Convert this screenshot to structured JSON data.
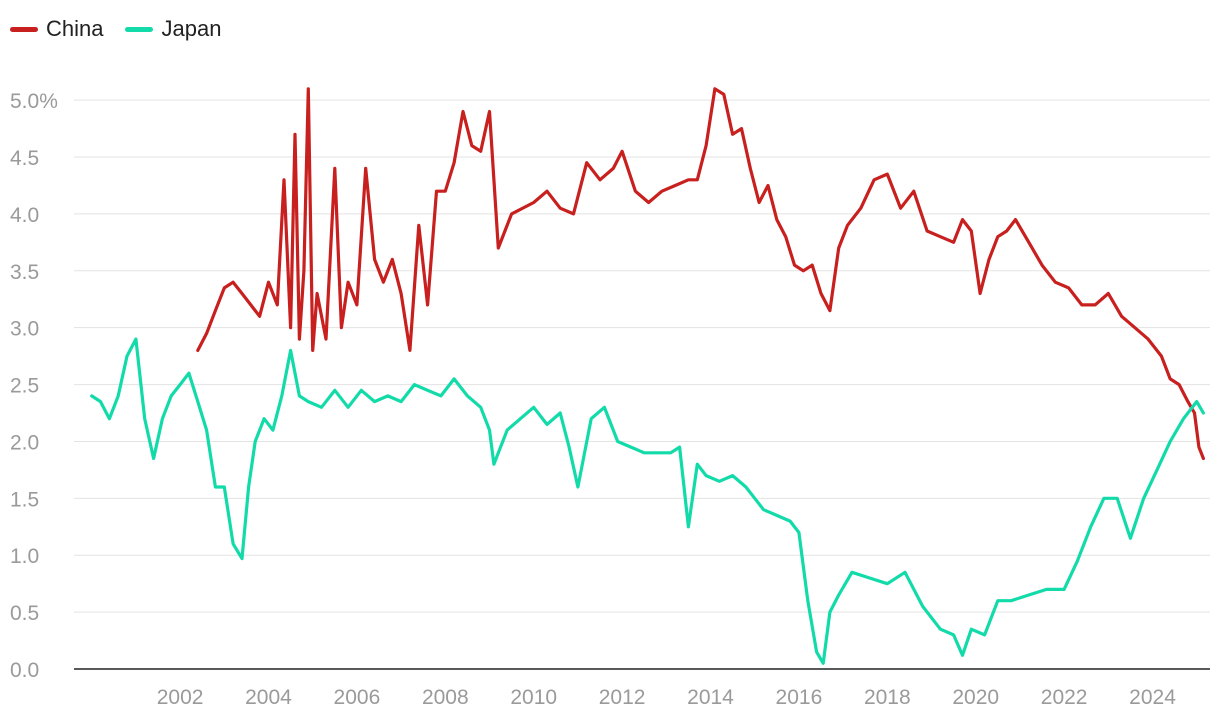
{
  "chart_data": {
    "type": "line",
    "title": "",
    "xlabel": "",
    "ylabel": "",
    "ylim": [
      0,
      5.3
    ],
    "xlim": [
      1999.6,
      2025.3
    ],
    "yticks": [
      0.0,
      0.5,
      1.0,
      1.5,
      2.0,
      2.5,
      3.0,
      3.5,
      4.0,
      4.5,
      5.0
    ],
    "ytick_labels": [
      "0.0",
      "0.5",
      "1.0",
      "1.5",
      "2.0",
      "2.5",
      "3.0",
      "3.5",
      "4.0",
      "4.5",
      "5.0%"
    ],
    "xticks": [
      2002,
      2004,
      2006,
      2008,
      2010,
      2012,
      2014,
      2016,
      2018,
      2020,
      2022,
      2024
    ],
    "xtick_labels": [
      "2002",
      "2004",
      "2006",
      "2008",
      "2010",
      "2012",
      "2014",
      "2016",
      "2018",
      "2020",
      "2022",
      "2024"
    ],
    "grid": true,
    "legend_position": "top-left",
    "series": [
      {
        "name": "China",
        "color": "#c8201f",
        "x": [
          2002.4,
          2002.6,
          2002.8,
          2003.0,
          2003.2,
          2003.4,
          2003.6,
          2003.8,
          2004.0,
          2004.2,
          2004.35,
          2004.5,
          2004.6,
          2004.7,
          2004.8,
          2004.9,
          2005.0,
          2005.1,
          2005.3,
          2005.5,
          2005.65,
          2005.8,
          2006.0,
          2006.2,
          2006.4,
          2006.6,
          2006.8,
          2007.0,
          2007.2,
          2007.4,
          2007.6,
          2007.8,
          2008.0,
          2008.2,
          2008.4,
          2008.6,
          2008.8,
          2009.0,
          2009.2,
          2009.5,
          2010.0,
          2010.3,
          2010.6,
          2010.9,
          2011.2,
          2011.5,
          2011.8,
          2012.0,
          2012.3,
          2012.6,
          2012.9,
          2013.2,
          2013.5,
          2013.7,
          2013.9,
          2014.1,
          2014.3,
          2014.5,
          2014.7,
          2014.9,
          2015.1,
          2015.3,
          2015.5,
          2015.7,
          2015.9,
          2016.1,
          2016.3,
          2016.5,
          2016.7,
          2016.9,
          2017.1,
          2017.4,
          2017.7,
          2018.0,
          2018.3,
          2018.6,
          2018.9,
          2019.2,
          2019.5,
          2019.7,
          2019.9,
          2020.1,
          2020.3,
          2020.5,
          2020.7,
          2020.9,
          2021.2,
          2021.5,
          2021.8,
          2022.1,
          2022.4,
          2022.7,
          2023.0,
          2023.3,
          2023.6,
          2023.9,
          2024.2,
          2024.4,
          2024.6,
          2024.8,
          2024.95,
          2025.05,
          2025.15
        ],
        "values": [
          2.8,
          2.95,
          3.15,
          3.35,
          3.4,
          3.3,
          3.2,
          3.1,
          3.4,
          3.2,
          4.3,
          3.0,
          4.7,
          2.9,
          3.5,
          5.1,
          2.8,
          3.3,
          2.9,
          4.4,
          3.0,
          3.4,
          3.2,
          4.4,
          3.6,
          3.4,
          3.6,
          3.3,
          2.8,
          3.9,
          3.2,
          4.2,
          4.2,
          4.45,
          4.9,
          4.6,
          4.55,
          4.9,
          3.7,
          4.0,
          4.1,
          4.2,
          4.05,
          4.0,
          4.45,
          4.3,
          4.4,
          4.55,
          4.2,
          4.1,
          4.2,
          4.25,
          4.3,
          4.3,
          4.6,
          5.1,
          5.05,
          4.7,
          4.75,
          4.4,
          4.1,
          4.25,
          3.95,
          3.8,
          3.55,
          3.5,
          3.55,
          3.3,
          3.15,
          3.7,
          3.9,
          4.05,
          4.3,
          4.35,
          4.05,
          4.2,
          3.85,
          3.8,
          3.75,
          3.95,
          3.85,
          3.3,
          3.6,
          3.8,
          3.85,
          3.95,
          3.75,
          3.55,
          3.4,
          3.35,
          3.2,
          3.2,
          3.3,
          3.1,
          3.0,
          2.9,
          2.75,
          2.55,
          2.5,
          2.35,
          2.25,
          1.95,
          1.85
        ]
      },
      {
        "name": "Japan",
        "color": "#12dba9",
        "x": [
          2000.0,
          2000.2,
          2000.4,
          2000.6,
          2000.8,
          2001.0,
          2001.2,
          2001.4,
          2001.6,
          2001.8,
          2002.0,
          2002.2,
          2002.4,
          2002.6,
          2002.8,
          2003.0,
          2003.2,
          2003.4,
          2003.55,
          2003.7,
          2003.9,
          2004.1,
          2004.3,
          2004.5,
          2004.7,
          2004.9,
          2005.2,
          2005.5,
          2005.8,
          2006.1,
          2006.4,
          2006.7,
          2007.0,
          2007.3,
          2007.6,
          2007.9,
          2008.2,
          2008.5,
          2008.8,
          2009.0,
          2009.1,
          2009.4,
          2009.7,
          2010.0,
          2010.3,
          2010.6,
          2010.8,
          2011.0,
          2011.3,
          2011.6,
          2011.9,
          2012.2,
          2012.5,
          2012.8,
          2013.1,
          2013.3,
          2013.5,
          2013.7,
          2013.9,
          2014.2,
          2014.5,
          2014.8,
          2015.0,
          2015.2,
          2015.5,
          2015.8,
          2016.0,
          2016.2,
          2016.4,
          2016.55,
          2016.7,
          2016.9,
          2017.2,
          2017.6,
          2018.0,
          2018.4,
          2018.8,
          2019.2,
          2019.5,
          2019.7,
          2019.9,
          2020.2,
          2020.5,
          2020.8,
          2021.2,
          2021.6,
          2022.0,
          2022.3,
          2022.6,
          2022.9,
          2023.2,
          2023.5,
          2023.8,
          2024.1,
          2024.4,
          2024.7,
          2025.0,
          2025.15
        ],
        "values": [
          2.4,
          2.35,
          2.2,
          2.4,
          2.75,
          2.9,
          2.2,
          1.85,
          2.2,
          2.4,
          2.5,
          2.6,
          2.35,
          2.1,
          1.6,
          1.6,
          1.1,
          0.97,
          1.6,
          2.0,
          2.2,
          2.1,
          2.4,
          2.8,
          2.4,
          2.35,
          2.3,
          2.45,
          2.3,
          2.45,
          2.35,
          2.4,
          2.35,
          2.5,
          2.45,
          2.4,
          2.55,
          2.4,
          2.3,
          2.1,
          1.8,
          2.1,
          2.2,
          2.3,
          2.15,
          2.25,
          1.95,
          1.6,
          2.2,
          2.3,
          2.0,
          1.95,
          1.9,
          1.9,
          1.9,
          1.95,
          1.25,
          1.8,
          1.7,
          1.65,
          1.7,
          1.6,
          1.5,
          1.4,
          1.35,
          1.3,
          1.2,
          0.6,
          0.15,
          0.05,
          0.5,
          0.65,
          0.85,
          0.8,
          0.75,
          0.85,
          0.55,
          0.35,
          0.3,
          0.12,
          0.35,
          0.3,
          0.6,
          0.6,
          0.65,
          0.7,
          0.7,
          0.95,
          1.25,
          1.5,
          1.5,
          1.15,
          1.5,
          1.75,
          2.0,
          2.2,
          2.35,
          2.25
        ]
      }
    ]
  }
}
